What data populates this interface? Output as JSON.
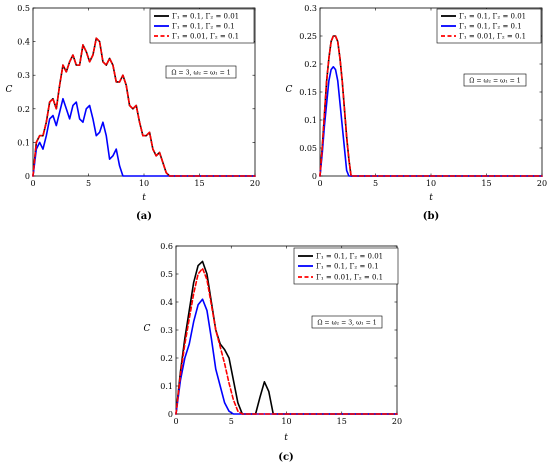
{
  "chart_data": [
    {
      "id": "a",
      "type": "line",
      "caption": "(a)",
      "xlabel": "t",
      "ylabel": "C",
      "xlim": [
        0,
        20
      ],
      "ylim": [
        0,
        0.5
      ],
      "xticks": [
        "0",
        "5",
        "10",
        "15",
        "20"
      ],
      "yticks": [
        "0",
        "0.1",
        "0.2",
        "0.3",
        "0.4",
        "0.5"
      ],
      "annotation": "Ω = 3, ω₂ = ω₁ = 1",
      "grid": false,
      "legend_position": "top-right",
      "series": [
        {
          "name": "Γ₁ = 0.1, Γ₂ = 0.01",
          "color": "#000000",
          "dash": "solid",
          "x": [
            0,
            0.3,
            0.6,
            0.9,
            1.2,
            1.5,
            1.8,
            2.1,
            2.4,
            2.7,
            3.0,
            3.3,
            3.6,
            3.9,
            4.2,
            4.5,
            4.8,
            5.1,
            5.4,
            5.7,
            6.0,
            6.3,
            6.6,
            6.9,
            7.2,
            7.5,
            7.8,
            8.1,
            8.4,
            8.7,
            9.0,
            9.3,
            9.6,
            9.9,
            10.2,
            10.5,
            10.8,
            11.1,
            11.4,
            11.7,
            12.0,
            12.3,
            20
          ],
          "y": [
            0,
            0.1,
            0.12,
            0.12,
            0.16,
            0.22,
            0.23,
            0.2,
            0.27,
            0.33,
            0.31,
            0.34,
            0.36,
            0.33,
            0.33,
            0.39,
            0.37,
            0.34,
            0.36,
            0.41,
            0.4,
            0.34,
            0.33,
            0.35,
            0.33,
            0.28,
            0.28,
            0.3,
            0.27,
            0.21,
            0.2,
            0.21,
            0.16,
            0.12,
            0.12,
            0.13,
            0.08,
            0.06,
            0.07,
            0.04,
            0.01,
            0.0,
            0.0
          ]
        },
        {
          "name": "Γ₁ = 0.1, Γ₂ = 0.1",
          "color": "#0000ff",
          "dash": "solid",
          "x": [
            0,
            0.3,
            0.6,
            0.9,
            1.2,
            1.5,
            1.8,
            2.1,
            2.4,
            2.7,
            3.0,
            3.3,
            3.6,
            3.9,
            4.2,
            4.5,
            4.8,
            5.1,
            5.4,
            5.7,
            6.0,
            6.3,
            6.6,
            6.9,
            7.2,
            7.5,
            7.8,
            8.1,
            8.4,
            8.7,
            20
          ],
          "y": [
            0,
            0.08,
            0.1,
            0.08,
            0.12,
            0.17,
            0.18,
            0.15,
            0.19,
            0.23,
            0.2,
            0.17,
            0.21,
            0.22,
            0.17,
            0.16,
            0.2,
            0.21,
            0.17,
            0.12,
            0.13,
            0.16,
            0.12,
            0.05,
            0.06,
            0.08,
            0.03,
            0.0,
            0.0,
            0.0,
            0.0
          ]
        },
        {
          "name": "Γ₁ = 0.01, Γ₂ = 0.1",
          "color": "#ff0000",
          "dash": "dashed",
          "x": [
            0,
            0.3,
            0.6,
            0.9,
            1.2,
            1.5,
            1.8,
            2.1,
            2.4,
            2.7,
            3.0,
            3.3,
            3.6,
            3.9,
            4.2,
            4.5,
            4.8,
            5.1,
            5.4,
            5.7,
            6.0,
            6.3,
            6.6,
            6.9,
            7.2,
            7.5,
            7.8,
            8.1,
            8.4,
            8.7,
            9.0,
            9.3,
            9.6,
            9.9,
            10.2,
            10.5,
            10.8,
            11.1,
            11.4,
            11.7,
            12.0,
            12.3,
            20
          ],
          "y": [
            0,
            0.1,
            0.12,
            0.12,
            0.16,
            0.22,
            0.23,
            0.2,
            0.27,
            0.33,
            0.31,
            0.34,
            0.36,
            0.33,
            0.33,
            0.39,
            0.37,
            0.34,
            0.36,
            0.41,
            0.4,
            0.34,
            0.33,
            0.35,
            0.33,
            0.28,
            0.28,
            0.3,
            0.27,
            0.21,
            0.2,
            0.21,
            0.16,
            0.12,
            0.12,
            0.13,
            0.08,
            0.06,
            0.07,
            0.04,
            0.01,
            0.0,
            0.0
          ]
        }
      ]
    },
    {
      "id": "b",
      "type": "line",
      "caption": "(b)",
      "xlabel": "t",
      "ylabel": "C",
      "xlim": [
        0,
        20
      ],
      "ylim": [
        0,
        0.3
      ],
      "xticks": [
        "0",
        "5",
        "10",
        "15",
        "20"
      ],
      "yticks": [
        "0",
        "0.05",
        "0.1",
        "0.15",
        "0.2",
        "0.25",
        "0.3"
      ],
      "annotation": "Ω = ω₂ = ω₁ = 1",
      "grid": false,
      "legend_position": "top-right",
      "series": [
        {
          "name": "Γ₁ = 0.1, Γ₂ = 0.01",
          "color": "#000000",
          "dash": "solid",
          "x": [
            0,
            0.2,
            0.4,
            0.6,
            0.8,
            1.0,
            1.2,
            1.4,
            1.6,
            1.8,
            2.0,
            2.2,
            2.4,
            2.6,
            2.8,
            3.0,
            20
          ],
          "y": [
            0,
            0.05,
            0.11,
            0.17,
            0.21,
            0.24,
            0.25,
            0.25,
            0.24,
            0.21,
            0.17,
            0.12,
            0.07,
            0.03,
            0.0,
            0.0,
            0.0
          ]
        },
        {
          "name": "Γ₁ = 0.1, Γ₂ = 0.1",
          "color": "#0000ff",
          "dash": "solid",
          "x": [
            0,
            0.2,
            0.4,
            0.6,
            0.8,
            1.0,
            1.2,
            1.4,
            1.6,
            1.8,
            2.0,
            2.2,
            2.4,
            2.6,
            20
          ],
          "y": [
            0,
            0.04,
            0.09,
            0.13,
            0.17,
            0.19,
            0.195,
            0.19,
            0.17,
            0.13,
            0.09,
            0.05,
            0.01,
            0.0,
            0.0
          ]
        },
        {
          "name": "Γ₁ = 0.01, Γ₂ = 0.1",
          "color": "#ff0000",
          "dash": "dashed",
          "x": [
            0,
            0.2,
            0.4,
            0.6,
            0.8,
            1.0,
            1.2,
            1.4,
            1.6,
            1.8,
            2.0,
            2.2,
            2.4,
            2.6,
            2.8,
            3.0,
            20
          ],
          "y": [
            0,
            0.05,
            0.11,
            0.17,
            0.21,
            0.24,
            0.25,
            0.25,
            0.24,
            0.21,
            0.17,
            0.12,
            0.07,
            0.03,
            0.0,
            0.0,
            0.0
          ]
        }
      ]
    },
    {
      "id": "c",
      "type": "line",
      "caption": "(c)",
      "xlabel": "t",
      "ylabel": "C",
      "xlim": [
        0,
        20
      ],
      "ylim": [
        0,
        0.6
      ],
      "xticks": [
        "0",
        "5",
        "10",
        "15",
        "20"
      ],
      "yticks": [
        "0",
        "0.1",
        "0.2",
        "0.3",
        "0.4",
        "0.5",
        "0.6"
      ],
      "annotation": "Ω = ω₂ = 3, ω₁ = 1",
      "grid": false,
      "legend_position": "top-right",
      "series": [
        {
          "name": "Γ₁ = 0.1, Γ₂ = 0.01",
          "color": "#000000",
          "dash": "solid",
          "x": [
            0,
            0.4,
            0.8,
            1.2,
            1.6,
            2.0,
            2.4,
            2.8,
            3.2,
            3.6,
            4.0,
            4.4,
            4.8,
            5.2,
            5.6,
            6.0,
            6.4,
            7.2,
            7.6,
            8.0,
            8.4,
            8.8,
            9.2,
            20
          ],
          "y": [
            0,
            0.15,
            0.27,
            0.37,
            0.47,
            0.53,
            0.545,
            0.5,
            0.4,
            0.3,
            0.25,
            0.23,
            0.2,
            0.12,
            0.04,
            0.0,
            0.0,
            0.0,
            0.06,
            0.115,
            0.08,
            0.0,
            0.0,
            0.0
          ]
        },
        {
          "name": "Γ₁ = 0.1, Γ₂ = 0.1",
          "color": "#0000ff",
          "dash": "solid",
          "x": [
            0,
            0.4,
            0.8,
            1.2,
            1.6,
            2.0,
            2.4,
            2.8,
            3.2,
            3.6,
            4.0,
            4.4,
            4.8,
            5.2,
            20
          ],
          "y": [
            0,
            0.12,
            0.2,
            0.25,
            0.33,
            0.39,
            0.41,
            0.37,
            0.27,
            0.16,
            0.1,
            0.04,
            0.01,
            0.0,
            0.0
          ]
        },
        {
          "name": "Γ₁ = 0.01, Γ₂ = 0.1",
          "color": "#ff0000",
          "dash": "dashed",
          "x": [
            0,
            0.4,
            0.8,
            1.2,
            1.6,
            2.0,
            2.4,
            2.8,
            3.2,
            3.6,
            4.0,
            4.4,
            4.8,
            5.2,
            5.6,
            6.0,
            20
          ],
          "y": [
            0,
            0.14,
            0.25,
            0.34,
            0.43,
            0.5,
            0.52,
            0.48,
            0.39,
            0.3,
            0.24,
            0.18,
            0.11,
            0.05,
            0.01,
            0.0,
            0.0
          ]
        }
      ]
    }
  ]
}
